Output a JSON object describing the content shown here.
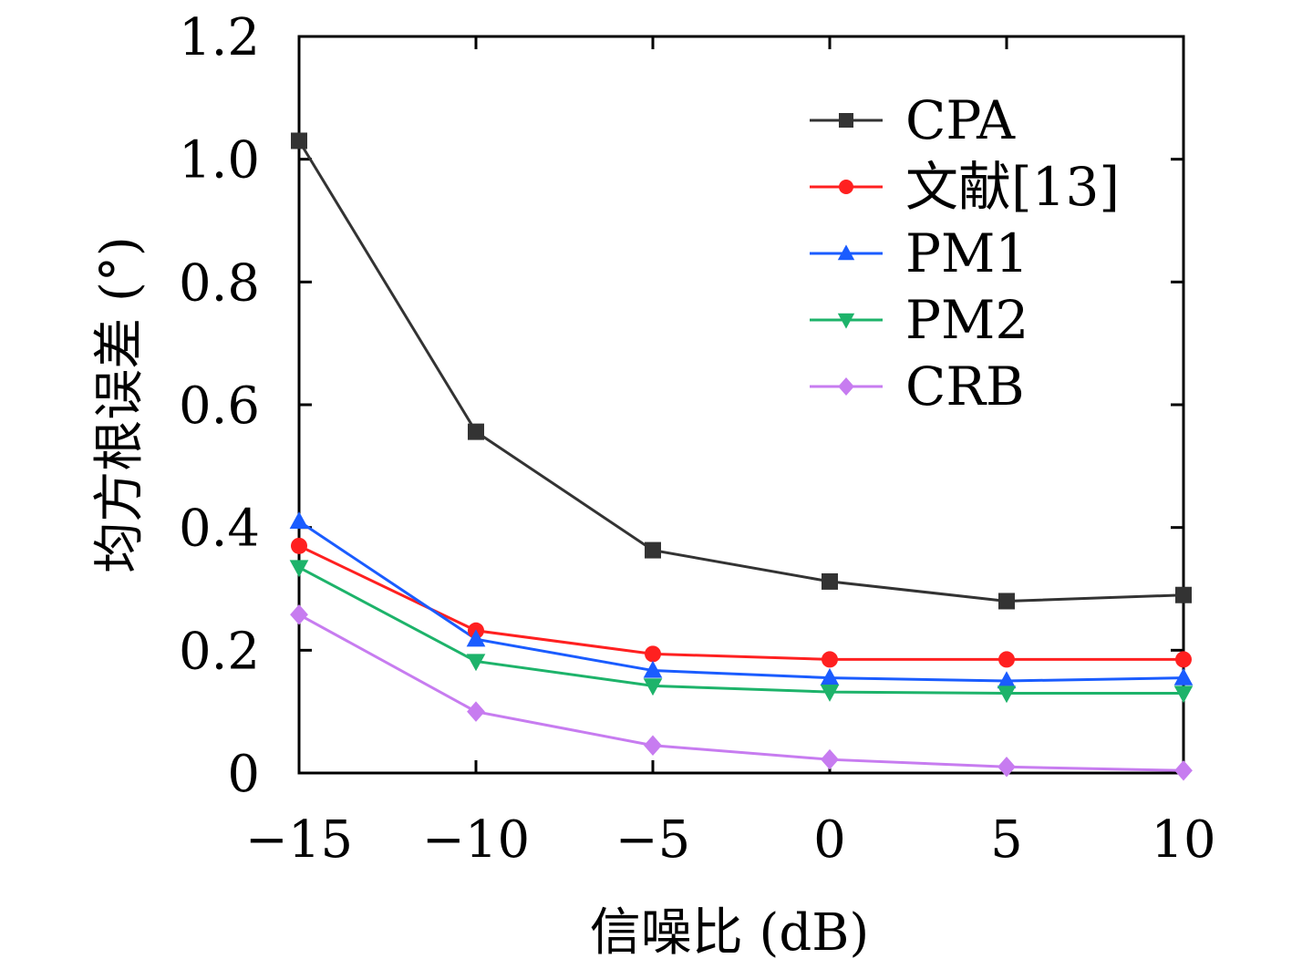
{
  "chart_data": {
    "type": "line",
    "xlabel": "信噪比 (dB)",
    "ylabel": "均方根误差 (°)",
    "x": [
      -15,
      -10,
      -5,
      0,
      5,
      10
    ],
    "x_tick_labels": [
      "−15",
      "−10",
      "−5",
      "0",
      "5",
      "10"
    ],
    "y_ticks": [
      0,
      0.2,
      0.4,
      0.6,
      0.8,
      1.0,
      1.2
    ],
    "y_tick_labels": [
      "0",
      "0.2",
      "0.4",
      "0.6",
      "0.8",
      "1.0",
      "1.2"
    ],
    "xlim": [
      -15,
      10
    ],
    "ylim": [
      0,
      1.2
    ],
    "grid": false,
    "legend_position": "top-right",
    "series": [
      {
        "name": "CPA",
        "color": "#333333",
        "marker": "square",
        "values": [
          1.03,
          0.556,
          0.363,
          0.312,
          0.28,
          0.29
        ]
      },
      {
        "name": "文献[13]",
        "color": "#ff2020",
        "marker": "circle",
        "values": [
          0.37,
          0.232,
          0.194,
          0.185,
          0.185,
          0.185
        ]
      },
      {
        "name": "PM1",
        "color": "#1a5cff",
        "marker": "triangle-up",
        "values": [
          0.41,
          0.218,
          0.167,
          0.155,
          0.15,
          0.155
        ]
      },
      {
        "name": "PM2",
        "color": "#1db36a",
        "marker": "triangle-down",
        "values": [
          0.335,
          0.182,
          0.142,
          0.132,
          0.13,
          0.13
        ]
      },
      {
        "name": "CRB",
        "color": "#c77cf0",
        "marker": "diamond",
        "values": [
          0.258,
          0.1,
          0.045,
          0.022,
          0.01,
          0.004
        ]
      }
    ]
  }
}
